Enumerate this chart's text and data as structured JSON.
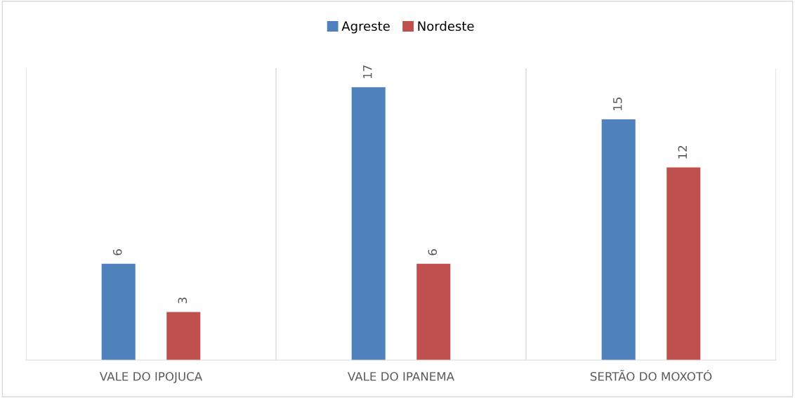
{
  "chart_data": {
    "type": "bar",
    "categories": [
      "VALE DO IPOJUCA",
      "VALE DO IPANEMA",
      "SERTÃO DO MOXOTÓ"
    ],
    "series": [
      {
        "name": "Agreste",
        "color": "#4f81bd",
        "values": [
          6,
          17,
          15
        ]
      },
      {
        "name": "Nordeste",
        "color": "#c0504d",
        "values": [
          3,
          6,
          12
        ]
      }
    ],
    "data_labels": true,
    "legend": "top",
    "grid": "x"
  }
}
